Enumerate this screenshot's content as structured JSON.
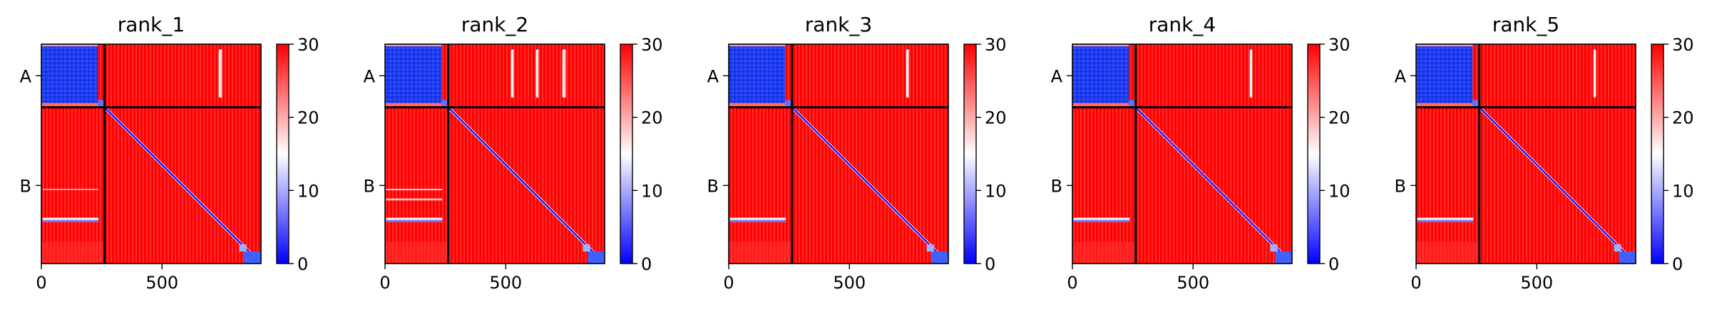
{
  "chart_data": {
    "type": "heatmap",
    "description_colormap": "bwr",
    "colormap_colors": [
      "#0000ff",
      "#ffffff",
      "#ff0000"
    ],
    "value_range": [
      0,
      30
    ],
    "x_ticks": [
      0,
      500
    ],
    "x_tick_labels": [
      "0",
      "500"
    ],
    "x_range": [
      0,
      910
    ],
    "chain_boundary": 262,
    "y_ticks": [
      {
        "label": "A",
        "pos": 131
      },
      {
        "label": "B",
        "pos": 586
      }
    ],
    "colorbar_ticks": [
      0,
      10,
      20,
      30
    ],
    "colorbar_tick_labels": [
      "0",
      "10",
      "20",
      "30"
    ],
    "panels": [
      {
        "title": "rank_1",
        "stripes": [
          {
            "x": 735,
            "w": 14
          }
        ],
        "band_row": 720
      },
      {
        "title": "rank_2",
        "stripes": [
          {
            "x": 522,
            "w": 12
          },
          {
            "x": 625,
            "w": 12
          },
          {
            "x": 735,
            "w": 14
          }
        ],
        "band_row": 720
      },
      {
        "title": "rank_3",
        "stripes": [
          {
            "x": 735,
            "w": 12
          }
        ],
        "band_row": 720
      },
      {
        "title": "rank_4",
        "stripes": [
          {
            "x": 735,
            "w": 10
          }
        ],
        "band_row": 720
      },
      {
        "title": "rank_5",
        "stripes": [
          {
            "x": 735,
            "w": 10
          }
        ],
        "band_row": 720
      }
    ]
  }
}
